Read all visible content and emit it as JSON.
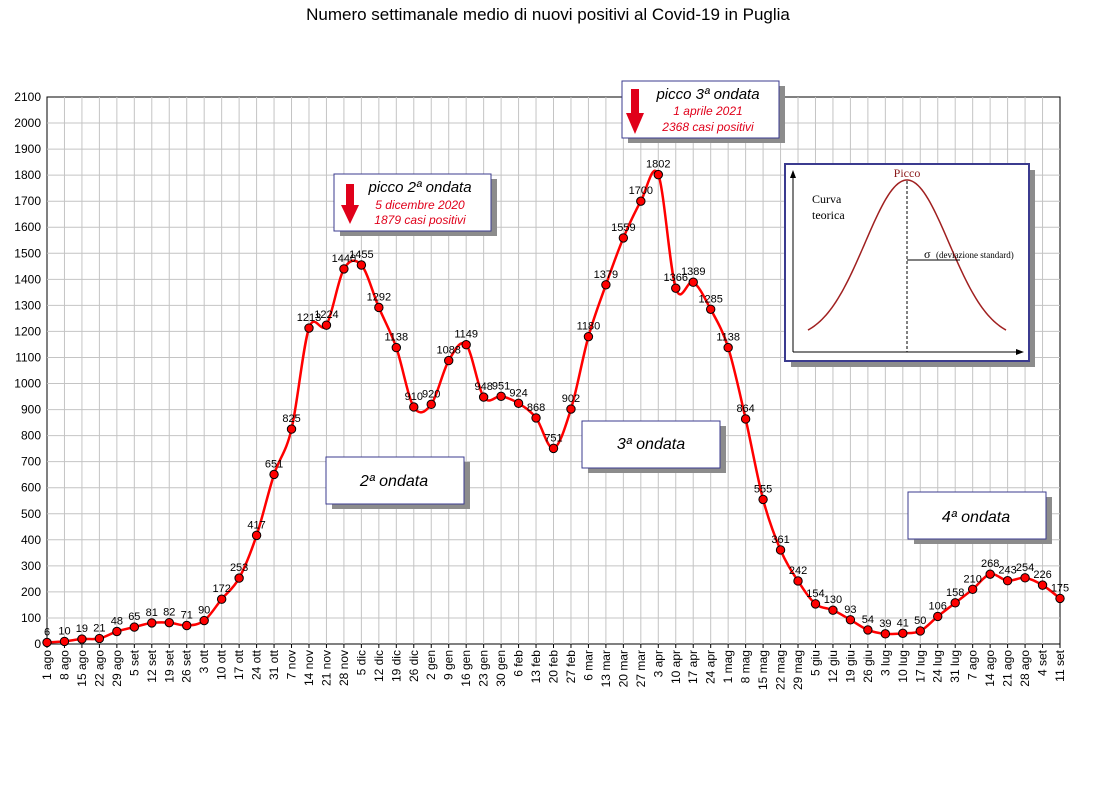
{
  "chart_data": {
    "type": "line",
    "title": "Numero settimanale medio di nuovi positivi al Covid-19 in Puglia",
    "xlabel": "",
    "ylabel": "",
    "ylim": [
      0,
      2100
    ],
    "yticks": [
      0,
      100,
      200,
      300,
      400,
      500,
      600,
      700,
      800,
      900,
      1000,
      1100,
      1200,
      1300,
      1400,
      1500,
      1600,
      1700,
      1800,
      1900,
      2000,
      2100
    ],
    "grid": true,
    "categories": [
      "1 ago",
      "8 ago",
      "15 ago",
      "22 ago",
      "29 ago",
      "5 set",
      "12 set",
      "19 set",
      "26 set",
      "3 ott",
      "10 ott",
      "17 ott",
      "24 ott",
      "31 ott",
      "7 nov",
      "14 nov",
      "21 nov",
      "28 nov",
      "5 dic",
      "12 dic",
      "19 dic",
      "26 dic",
      "2 gen",
      "9 gen",
      "16 gen",
      "23 gen",
      "30 gen",
      "6 feb",
      "13 feb",
      "20 feb",
      "27 feb",
      "6 mar",
      "13 mar",
      "20 mar",
      "27 mar",
      "3 apr",
      "10 apr",
      "17 apr",
      "24 apr",
      "1 mag",
      "8 mag",
      "15 mag",
      "22 mag",
      "29 mag",
      "5 giu",
      "12 giu",
      "19 giu",
      "26 giu",
      "3 lug",
      "10 lug",
      "17 lug",
      "24 lug",
      "31 lug",
      "7 ago",
      "14 ago",
      "21 ago",
      "28 ago",
      "4 set",
      "11 set"
    ],
    "series": [
      {
        "color": "#ff0000",
        "values": [
          6,
          10,
          19,
          21,
          48,
          65,
          81,
          82,
          71,
          90,
          172,
          253,
          417,
          651,
          825,
          1213,
          1224,
          1440,
          1455,
          1292,
          1138,
          910,
          920,
          1088,
          1149,
          948,
          951,
          924,
          868,
          751,
          902,
          1180,
          1379,
          1559,
          1700,
          1802,
          1366,
          1389,
          1285,
          1138,
          864,
          555,
          361,
          242,
          154,
          130,
          93,
          54,
          39,
          41,
          50,
          106,
          158,
          210,
          268,
          243,
          254,
          226,
          175
        ],
        "labels": [
          "6",
          "10",
          "19",
          "21",
          "48",
          "65",
          "81",
          "82",
          "71",
          "90",
          "172",
          "253",
          "417",
          "651",
          "825",
          "1213",
          "1224",
          "1440",
          "1455",
          "1292",
          "1138",
          "910",
          "920",
          "1088",
          "1149",
          "948",
          "951",
          "924",
          "868",
          "751",
          "902",
          "1180",
          "1379",
          "1559",
          "1700",
          "1802",
          "1366",
          "1389",
          "1285",
          "1138",
          "864",
          "555",
          "361",
          "242",
          "154",
          "130",
          "93",
          "54",
          "39",
          "41",
          "50",
          "106",
          "158",
          "210",
          "268",
          "243",
          "254",
          "226",
          "175"
        ]
      }
    ],
    "wave_labels": [
      {
        "text": "2ª ondata",
        "at": "28 nov"
      },
      {
        "text": "3ª ondata",
        "at": "3 apr"
      },
      {
        "text": "4ª ondata",
        "at": "14 ago"
      }
    ],
    "peak_annotations": [
      {
        "title": "picco 2ª ondata",
        "date": "5 dicembre 2020",
        "cases": "1879 casi positivi"
      },
      {
        "title": "picco 3ª ondata",
        "date": "1 aprile 2021",
        "cases": "2368 casi positivi"
      }
    ],
    "inset": {
      "peak_label": "Picco",
      "curve_label_line1": "Curva",
      "curve_label_line2": "teorica",
      "sigma_symbol": "σ",
      "sigma_label": "(deviazione standard)"
    }
  }
}
